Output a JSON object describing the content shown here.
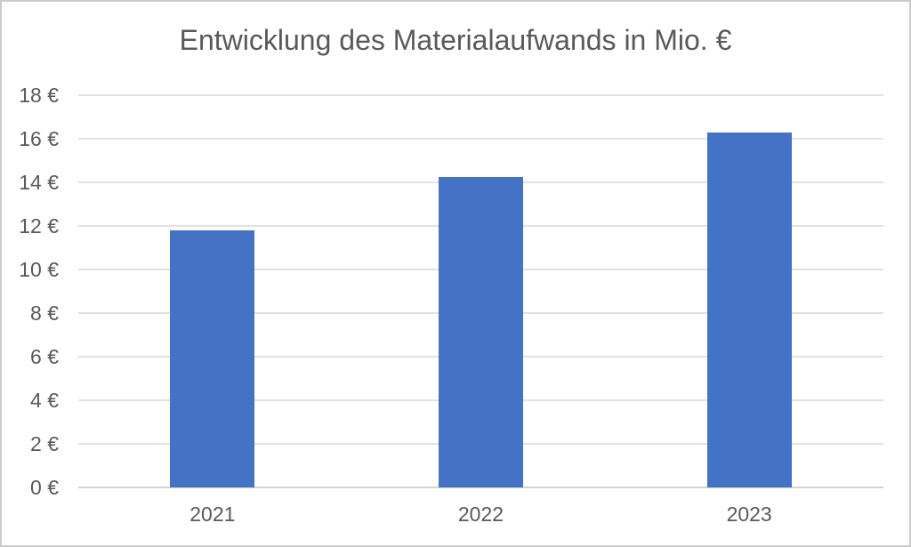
{
  "frame": {
    "background": "#ffffff",
    "border_color": "#cbcbcb"
  },
  "chart_data": {
    "type": "bar",
    "title": "Entwicklung des Materialaufwands in Mio. €",
    "categories": [
      "2021",
      "2022",
      "2023"
    ],
    "values": [
      11.8,
      14.25,
      16.3
    ],
    "y_tick_labels": [
      "0 €",
      "2 €",
      "4 €",
      "6 €",
      "8 €",
      "10 €",
      "12 €",
      "14 €",
      "16 €",
      "18 €"
    ],
    "ylim": [
      0,
      18
    ],
    "y_tick_step": 2,
    "xlabel": "",
    "ylabel": "",
    "grid": true,
    "legend": "none",
    "bar_color": "#4472c4",
    "gridline_color": "#e2e2e2",
    "axis_line_color": "#d4d4d4",
    "text_color": "#595959"
  }
}
